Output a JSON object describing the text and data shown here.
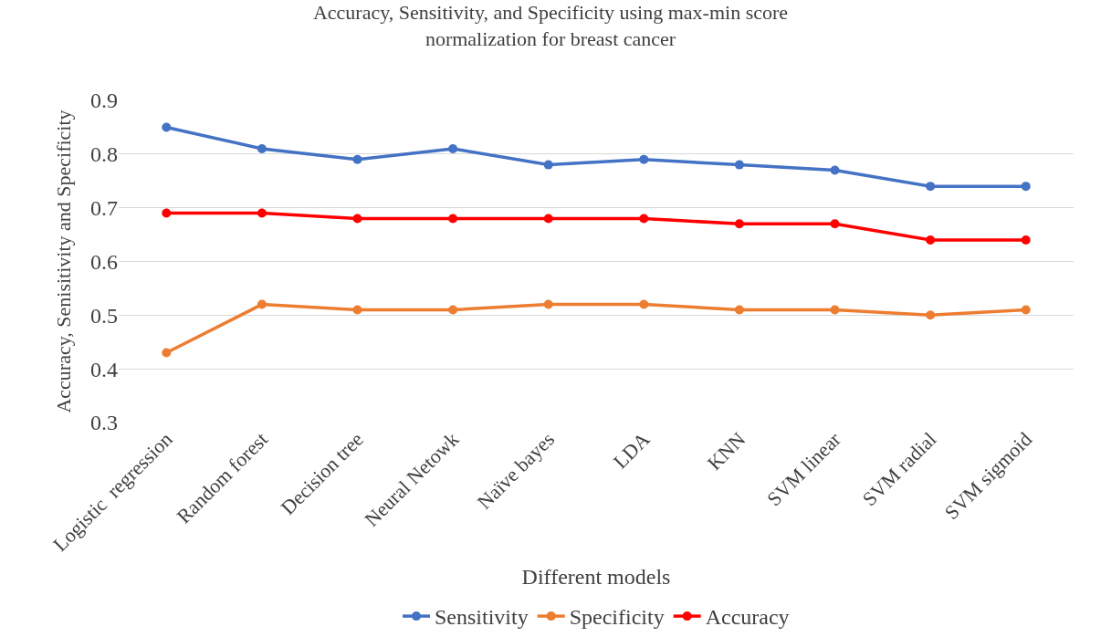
{
  "chart_data": {
    "type": "line",
    "title": "Accuracy, Sensitivity, and Specificity using max-min score normalization for breast cancer",
    "xlabel": "Different models",
    "ylabel": "Accuracy, Senisitivity and Specificity",
    "categories": [
      "Logistic  regression",
      "Random forest",
      "Decision tree",
      "Neural Netowk",
      "Naïve bayes",
      "LDA",
      "KNN",
      "SVM linear",
      "SVM radial",
      "SVM sigmoid"
    ],
    "series": [
      {
        "name": "Sensitivity",
        "color": "#4472c4",
        "values": [
          0.85,
          0.81,
          0.79,
          0.81,
          0.78,
          0.79,
          0.78,
          0.77,
          0.74,
          0.74
        ]
      },
      {
        "name": "Specificity",
        "color": "#ed7d31",
        "values": [
          0.43,
          0.52,
          0.51,
          0.51,
          0.52,
          0.52,
          0.51,
          0.51,
          0.5,
          0.51
        ]
      },
      {
        "name": "Accuracy",
        "color": "#ff0000",
        "values": [
          0.69,
          0.69,
          0.68,
          0.68,
          0.68,
          0.68,
          0.67,
          0.67,
          0.64,
          0.64
        ]
      }
    ],
    "ylim": [
      0.3,
      0.9
    ],
    "yticks": [
      0.3,
      0.4,
      0.5,
      0.6,
      0.7,
      0.8,
      0.9
    ],
    "grid": "y",
    "legend": "bottom",
    "marker": "circle",
    "line_style": "solid"
  }
}
